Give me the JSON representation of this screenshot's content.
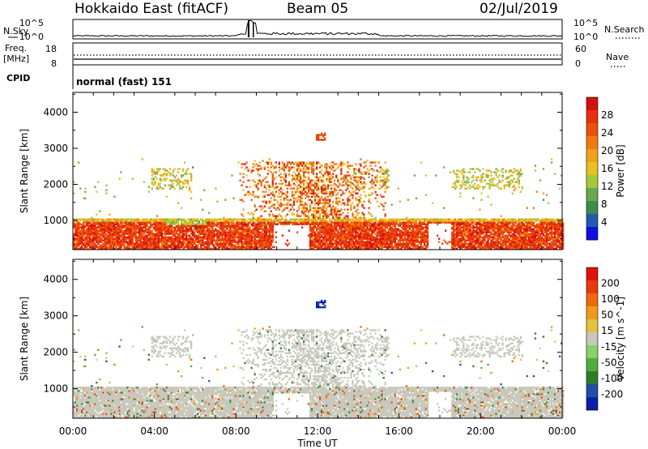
{
  "header": {
    "station": "Hokkaido East (fitACF)",
    "beam": "Beam 05",
    "date": "02/Jul/2019"
  },
  "strip_labels": {
    "nsky": "N.Sky",
    "nsearch": "N.Search",
    "freq": "Freq.",
    "freq_unit": "[MHz]",
    "nave": "Nave",
    "cpid": "CPID",
    "cpid_value": "normal (fast) 151"
  },
  "noise_axis": {
    "left_ticks": [
      "10^5",
      "10^0"
    ],
    "right_ticks": [
      "10^5",
      "10^0"
    ]
  },
  "freq_axis": {
    "left_ticks": [
      "18",
      "8"
    ],
    "right_ticks": [
      "60",
      "0"
    ]
  },
  "colors": {
    "power": [
      "#1010e0",
      "#205bb0",
      "#3f8a4f",
      "#6aa84f",
      "#a6c83a",
      "#e8c21e",
      "#f2a21a",
      "#f07a10",
      "#ee4f0c",
      "#e8300a",
      "#d41010"
    ],
    "velocity": [
      "#0a1fa8",
      "#224ea6",
      "#2c7d2a",
      "#4fae3a",
      "#86d36a",
      "#c8c8bc",
      "#e2c23e",
      "#ef9a18",
      "#ee6a0e",
      "#e83a0a",
      "#e21010"
    ]
  },
  "chart_data": [
    {
      "type": "heatmap",
      "name": "power",
      "ylabel": "Slant Range [km]",
      "yticks": [
        "1000",
        "2000",
        "3000",
        "4000"
      ],
      "ylim": [
        190,
        4550
      ],
      "xlim": [
        0,
        24
      ],
      "colorbar_label": "Power [dB]",
      "colorbar_ticks": [
        "4",
        "8",
        "12",
        "16",
        "20",
        "24",
        "28"
      ],
      "colorbar_range": [
        0,
        32
      ],
      "x": [
        0,
        1,
        2,
        3,
        4,
        5,
        6,
        7,
        8,
        9,
        10,
        11,
        12,
        13,
        14,
        15,
        16,
        17,
        18,
        19,
        20,
        21,
        22,
        23,
        24
      ]
    },
    {
      "type": "heatmap",
      "name": "velocity",
      "ylabel": "Slant Range [km]",
      "yticks": [
        "1000",
        "2000",
        "3000",
        "4000"
      ],
      "ylim": [
        190,
        4550
      ],
      "xlim": [
        0,
        24
      ],
      "xlabel": "Time UT",
      "xticks": [
        "00:00",
        "04:00",
        "08:00",
        "12:00",
        "16:00",
        "20:00",
        "00:00"
      ],
      "colorbar_label": "Velocity [m s^-1]",
      "colorbar_ticks": [
        "-200",
        "-100",
        "-50",
        "-15",
        "15",
        "50",
        "100",
        "200"
      ],
      "colorbar_range": [
        -250,
        250
      ]
    }
  ]
}
